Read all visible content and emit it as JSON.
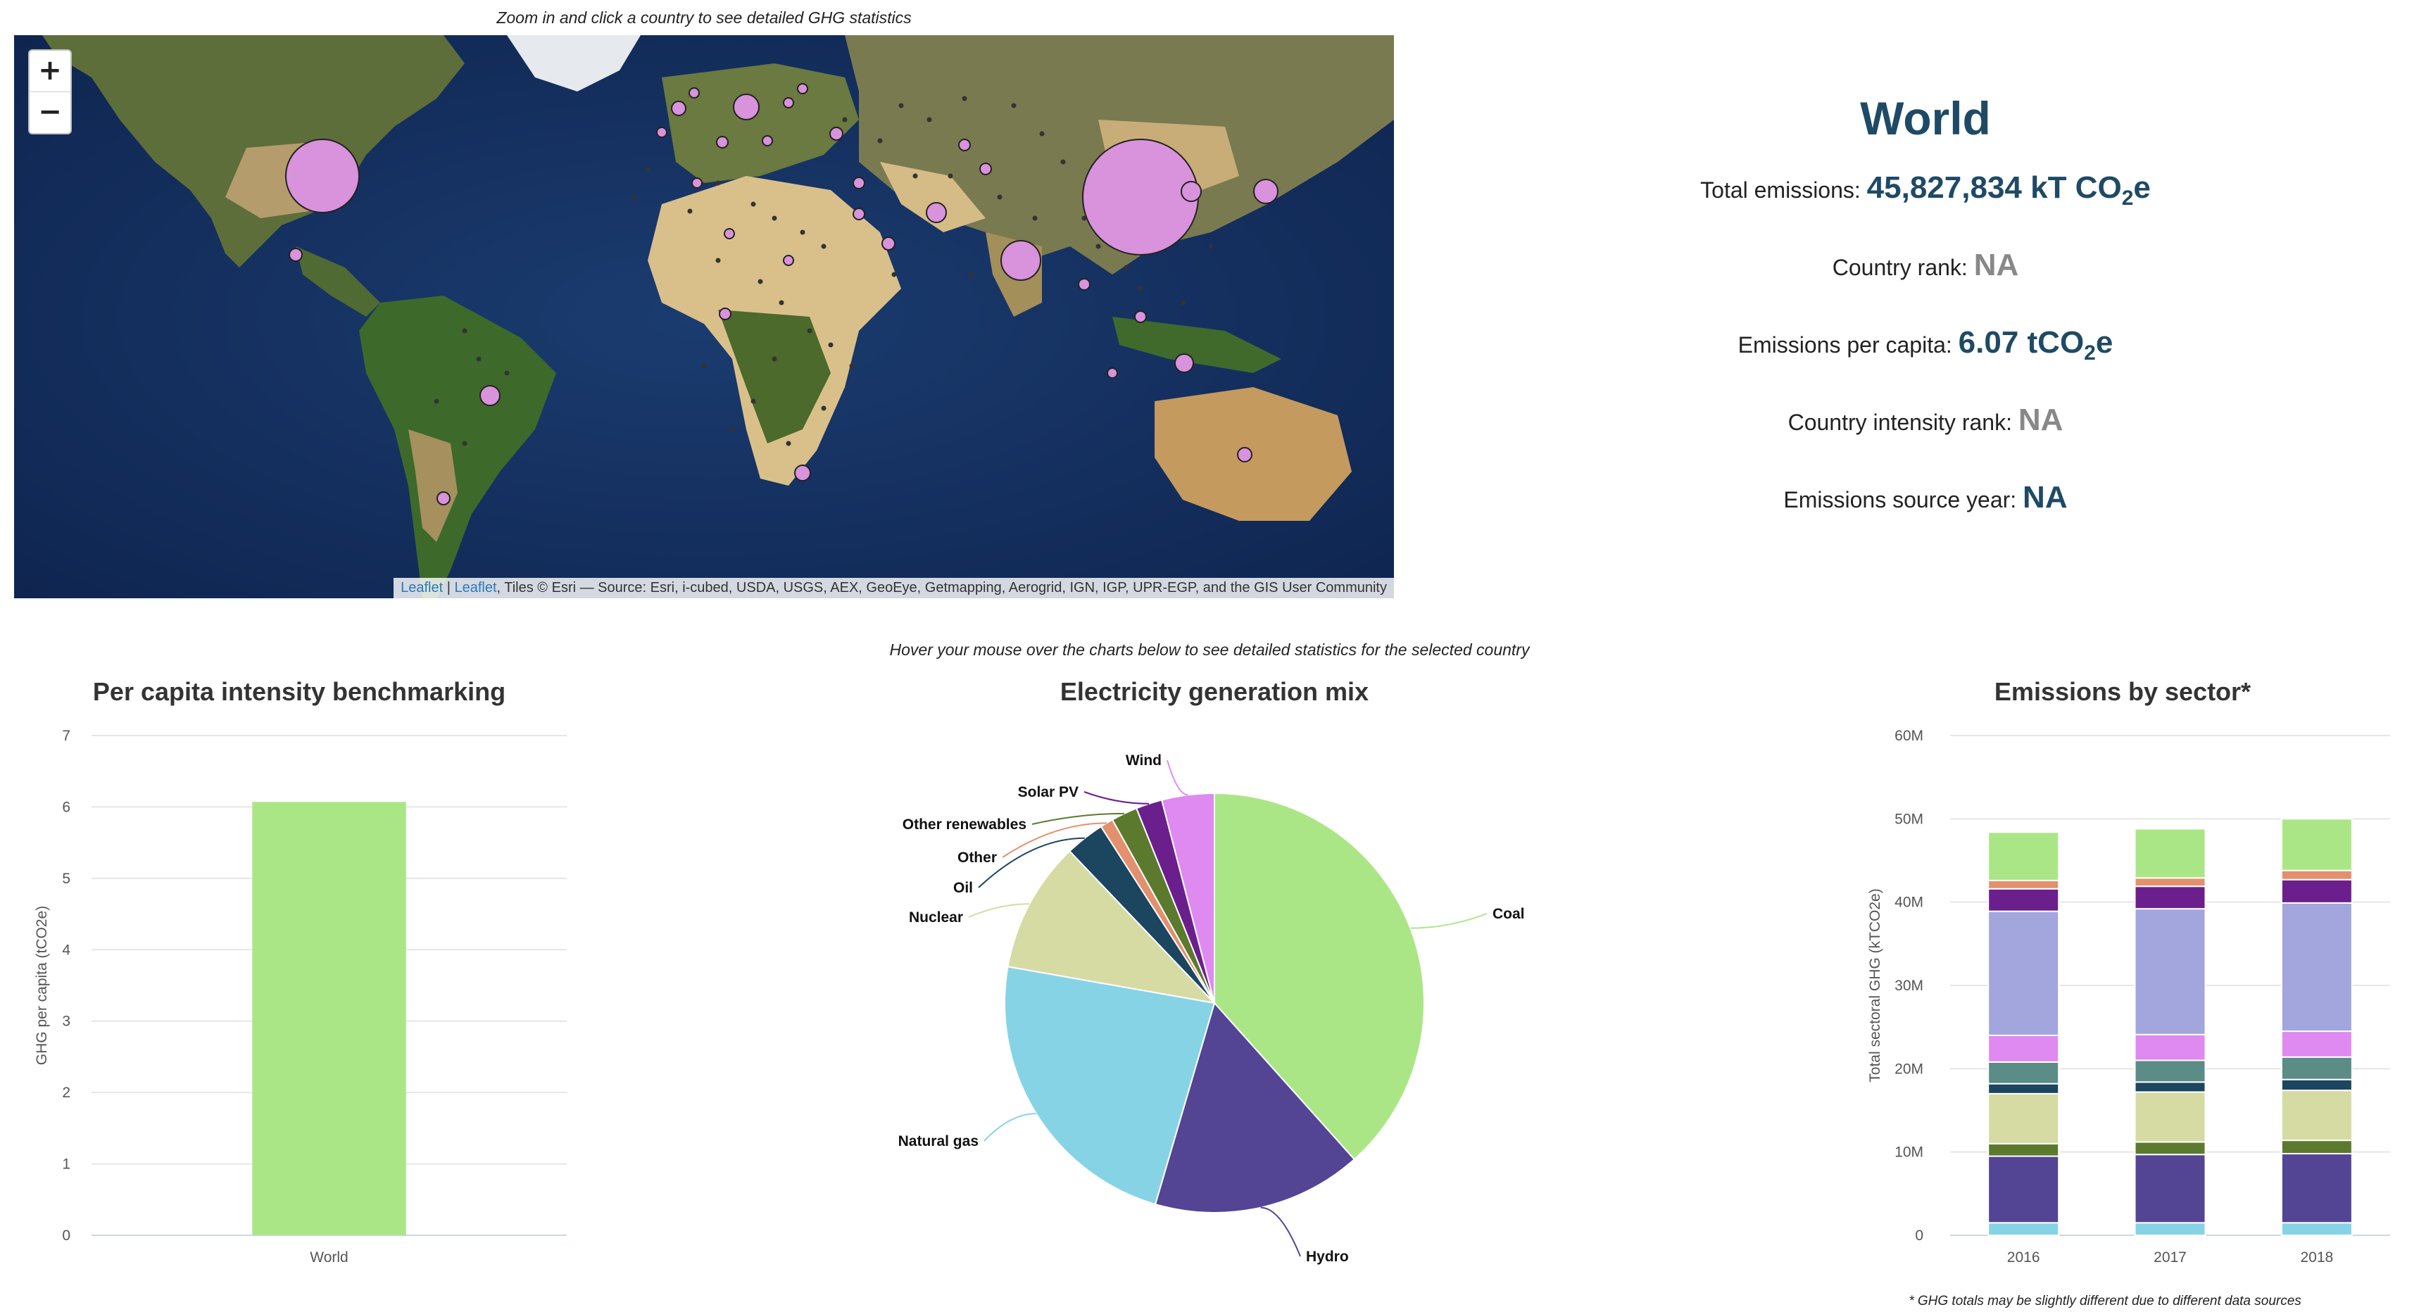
{
  "map_hint": "Zoom in and click a country to see detailed GHG statistics",
  "map": {
    "zoom_in": "+",
    "zoom_out": "−",
    "attribution_leaflet1": "Leaflet",
    "attribution_sep": " | ",
    "attribution_leaflet2": "Leaflet",
    "attribution_rest": ", Tiles © Esri — Source: Esri, i-cubed, USDA, USGS, AEX, GeoEye, Getmapping, Aerogrid, IGN, IGP, UPR-EGP, and the GIS User Community"
  },
  "stats": {
    "title": "World",
    "total_label": "Total emissions: ",
    "total_value": "45,827,834 kT CO",
    "total_sub": "2",
    "total_unit": "e",
    "rank_label": "Country rank: ",
    "rank_value": "NA",
    "percap_label": "Emissions per capita: ",
    "percap_value": "6.07 tCO",
    "percap_sub": "2",
    "percap_unit": "e",
    "intensity_label": "Country intensity rank: ",
    "intensity_value": "NA",
    "year_label": "Emissions source year: ",
    "year_value": "NA"
  },
  "chart_hint": "Hover your mouse over the charts below to see detailed statistics for the selected country",
  "footnote": "* GHG totals may be slightly different due to different data sources",
  "colors": {
    "green": "#abe686",
    "purple": "#544494",
    "lightblue": "#87d3e6",
    "beige": "#d5dba3",
    "navy": "#1c4560",
    "salmon": "#e2906d",
    "olive": "#5c7a2e",
    "darkpurple": "#6b1f8c",
    "pink": "#df8af0",
    "lavender": "#a2a6dc",
    "teal": "#5b8c86",
    "ocean": "#15305c"
  },
  "chart_data": [
    {
      "type": "bar",
      "title": "Per capita intensity benchmarking",
      "ylabel": "GHG per capita (tCO2e)",
      "categories": [
        "World"
      ],
      "values": [
        6.07
      ],
      "ylim": [
        0,
        7
      ],
      "yticks": [
        0,
        1,
        2,
        3,
        4,
        5,
        6,
        7
      ],
      "color": "#abe686"
    },
    {
      "type": "pie",
      "title": "Electricity generation mix",
      "slices": [
        {
          "label": "Coal",
          "value": 38,
          "color": "#abe686"
        },
        {
          "label": "Hydro",
          "value": 16,
          "color": "#544494"
        },
        {
          "label": "Natural gas",
          "value": 23,
          "color": "#87d3e6"
        },
        {
          "label": "Nuclear",
          "value": 10,
          "color": "#d5dba3"
        },
        {
          "label": "Oil",
          "value": 3,
          "color": "#1c4560"
        },
        {
          "label": "Other",
          "value": 1,
          "color": "#e2906d"
        },
        {
          "label": "Other renewables",
          "value": 2,
          "color": "#5c7a2e"
        },
        {
          "label": "Solar PV",
          "value": 2,
          "color": "#6b1f8c"
        },
        {
          "label": "Wind",
          "value": 4,
          "color": "#df8af0"
        }
      ]
    },
    {
      "type": "bar",
      "stacked": true,
      "title": "Emissions by sector*",
      "ylabel": "Total sectoral GHG (kTCO2e)",
      "categories": [
        "2016",
        "2017",
        "2018"
      ],
      "ylim": [
        0,
        60000000
      ],
      "yticks": [
        "0",
        "10M",
        "20M",
        "30M",
        "40M",
        "50M",
        "60M"
      ],
      "series": [
        {
          "values": [
            1.5,
            1.5,
            1.5
          ],
          "color": "#87d3e6"
        },
        {
          "values": [
            8.0,
            8.2,
            8.3
          ],
          "color": "#544494"
        },
        {
          "values": [
            1.5,
            1.5,
            1.6
          ],
          "color": "#5c7a2e"
        },
        {
          "values": [
            6.0,
            6.0,
            6.0
          ],
          "color": "#d5dba3"
        },
        {
          "values": [
            1.2,
            1.2,
            1.3
          ],
          "color": "#1c4560"
        },
        {
          "values": [
            2.6,
            2.6,
            2.7
          ],
          "color": "#5b8c86"
        },
        {
          "values": [
            3.2,
            3.1,
            3.1
          ],
          "color": "#df8af0"
        },
        {
          "values": [
            14.9,
            15.1,
            15.4
          ],
          "color": "#a2a6dc"
        },
        {
          "values": [
            2.7,
            2.7,
            2.8
          ],
          "color": "#6b1f8c"
        },
        {
          "values": [
            1.0,
            1.0,
            1.1
          ],
          "color": "#e2906d"
        },
        {
          "values": [
            5.8,
            5.9,
            6.2
          ],
          "color": "#abe686"
        }
      ],
      "series_units": "M"
    }
  ]
}
